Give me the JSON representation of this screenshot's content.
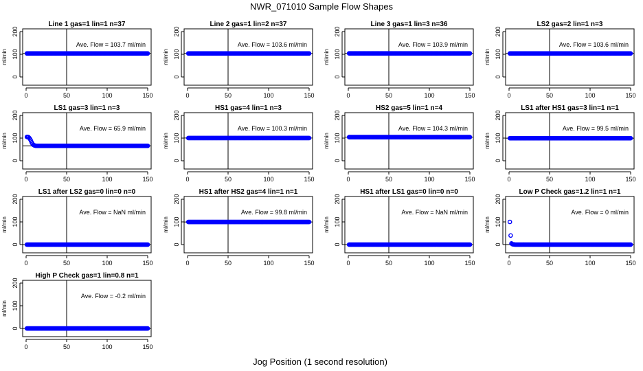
{
  "figure": {
    "title": "NWR_071010  Sample Flow Shapes",
    "xlabel": "Jog Position (1 second resolution)"
  },
  "colors": {
    "points": "#0000ff",
    "axes": "#000000",
    "background": "#ffffff"
  },
  "chart_data": [
    {
      "type": "scatter",
      "title": "Line 1 gas=1 lin=1 n=37",
      "ylabel": "ml/min",
      "annotation": "Ave. Flow =  103.7  ml/min",
      "xlim": [
        0,
        150
      ],
      "ylim": [
        0,
        200
      ],
      "xticks": [
        0,
        50,
        100,
        150
      ],
      "yticks": [
        0,
        100,
        200
      ],
      "vline_x": 50,
      "hline_y": 103.7,
      "series": [
        {
          "name": "flow",
          "shape": "constant",
          "value": 103.7,
          "x_range": [
            1,
            150
          ]
        }
      ]
    },
    {
      "type": "scatter",
      "title": "Line 2 gas=1 lin=2 n=37",
      "ylabel": "ml/min",
      "annotation": "Ave. Flow =  103.6  ml/min",
      "xlim": [
        0,
        150
      ],
      "ylim": [
        0,
        200
      ],
      "xticks": [
        0,
        50,
        100,
        150
      ],
      "yticks": [
        0,
        100,
        200
      ],
      "vline_x": 50,
      "hline_y": 103.6,
      "series": [
        {
          "name": "flow",
          "shape": "constant",
          "value": 103.6,
          "x_range": [
            1,
            150
          ]
        }
      ]
    },
    {
      "type": "scatter",
      "title": "Line 3 gas=1 lin=3 n=36",
      "ylabel": "ml/min",
      "annotation": "Ave. Flow =  103.9  ml/min",
      "xlim": [
        0,
        150
      ],
      "ylim": [
        0,
        200
      ],
      "xticks": [
        0,
        50,
        100,
        150
      ],
      "yticks": [
        0,
        100,
        200
      ],
      "vline_x": 50,
      "hline_y": 103.9,
      "series": [
        {
          "name": "flow",
          "shape": "constant",
          "value": 103.9,
          "x_range": [
            1,
            150
          ]
        }
      ]
    },
    {
      "type": "scatter",
      "title": "LS2 gas=2 lin=1 n=3",
      "ylabel": "ml/min",
      "annotation": "Ave. Flow =  103.6  ml/min",
      "xlim": [
        0,
        150
      ],
      "ylim": [
        0,
        200
      ],
      "xticks": [
        0,
        50,
        100,
        150
      ],
      "yticks": [
        0,
        100,
        200
      ],
      "vline_x": 50,
      "hline_y": 103.6,
      "series": [
        {
          "name": "flow",
          "shape": "constant",
          "value": 103.6,
          "x_range": [
            1,
            150
          ]
        }
      ]
    },
    {
      "type": "scatter",
      "title": "LS1 gas=3 lin=1 n=3",
      "ylabel": "ml/min",
      "annotation": "Ave. Flow =  65.9  ml/min",
      "xlim": [
        0,
        150
      ],
      "ylim": [
        0,
        200
      ],
      "xticks": [
        0,
        50,
        100,
        150
      ],
      "yticks": [
        0,
        100,
        200
      ],
      "vline_x": 50,
      "hline_y": 65.9,
      "series": [
        {
          "name": "flow",
          "shape": "spike_then_constant",
          "value": 65.9,
          "start_values": [
            105,
            105,
            104,
            100,
            95,
            88,
            80,
            74,
            70,
            68,
            67,
            66
          ],
          "x_range": [
            1,
            150
          ]
        }
      ]
    },
    {
      "type": "scatter",
      "title": "HS1 gas=4 lin=1 n=3",
      "ylabel": "ml/min",
      "annotation": "Ave. Flow =  100.3  ml/min",
      "xlim": [
        0,
        150
      ],
      "ylim": [
        0,
        200
      ],
      "xticks": [
        0,
        50,
        100,
        150
      ],
      "yticks": [
        0,
        100,
        200
      ],
      "vline_x": 50,
      "hline_y": 100.3,
      "series": [
        {
          "name": "flow",
          "shape": "constant",
          "value": 100.3,
          "x_range": [
            1,
            150
          ]
        }
      ]
    },
    {
      "type": "scatter",
      "title": "HS2 gas=5 lin=1 n=4",
      "ylabel": "ml/min",
      "annotation": "Ave. Flow =  104.3  ml/min",
      "xlim": [
        0,
        150
      ],
      "ylim": [
        0,
        200
      ],
      "xticks": [
        0,
        50,
        100,
        150
      ],
      "yticks": [
        0,
        100,
        200
      ],
      "vline_x": 50,
      "hline_y": 104.3,
      "series": [
        {
          "name": "flow",
          "shape": "constant",
          "value": 104.3,
          "x_range": [
            1,
            150
          ]
        }
      ]
    },
    {
      "type": "scatter",
      "title": "LS1 after HS1 gas=3 lin=1 n=1",
      "ylabel": "ml/min",
      "annotation": "Ave. Flow =  99.5  ml/min",
      "xlim": [
        0,
        150
      ],
      "ylim": [
        0,
        200
      ],
      "xticks": [
        0,
        50,
        100,
        150
      ],
      "yticks": [
        0,
        100,
        200
      ],
      "vline_x": 50,
      "hline_y": 99.5,
      "series": [
        {
          "name": "flow",
          "shape": "constant",
          "value": 99.5,
          "x_range": [
            1,
            150
          ]
        }
      ]
    },
    {
      "type": "scatter",
      "title": "LS1 after LS2 gas=0 lin=0 n=0",
      "ylabel": "ml/min",
      "annotation": "Ave. Flow =  NaN  ml/min",
      "xlim": [
        0,
        150
      ],
      "ylim": [
        0,
        200
      ],
      "xticks": [
        0,
        50,
        100,
        150
      ],
      "yticks": [
        0,
        100,
        200
      ],
      "vline_x": 50,
      "hline_y": 0,
      "series": [
        {
          "name": "flow",
          "shape": "constant",
          "value": 0,
          "x_range": [
            1,
            150
          ]
        }
      ]
    },
    {
      "type": "scatter",
      "title": "HS1 after HS2 gas=4 lin=1 n=1",
      "ylabel": "ml/min",
      "annotation": "Ave. Flow =  99.8  ml/min",
      "xlim": [
        0,
        150
      ],
      "ylim": [
        0,
        200
      ],
      "xticks": [
        0,
        50,
        100,
        150
      ],
      "yticks": [
        0,
        100,
        200
      ],
      "vline_x": 50,
      "hline_y": 99.8,
      "series": [
        {
          "name": "flow",
          "shape": "constant",
          "value": 99.8,
          "x_range": [
            1,
            150
          ]
        }
      ]
    },
    {
      "type": "scatter",
      "title": "HS1 after LS1 gas=0 lin=0 n=0",
      "ylabel": "ml/min",
      "annotation": "Ave. Flow =  NaN  ml/min",
      "xlim": [
        0,
        150
      ],
      "ylim": [
        0,
        200
      ],
      "xticks": [
        0,
        50,
        100,
        150
      ],
      "yticks": [
        0,
        100,
        200
      ],
      "vline_x": 50,
      "hline_y": 0,
      "series": [
        {
          "name": "flow",
          "shape": "constant",
          "value": 0,
          "x_range": [
            1,
            150
          ]
        }
      ]
    },
    {
      "type": "scatter",
      "title": "Low P Check gas=1.2 lin=1 n=1",
      "ylabel": "ml/min",
      "annotation": "Ave. Flow =  0  ml/min",
      "xlim": [
        0,
        150
      ],
      "ylim": [
        0,
        200
      ],
      "xticks": [
        0,
        50,
        100,
        150
      ],
      "yticks": [
        0,
        100,
        200
      ],
      "vline_x": 50,
      "hline_y": 0,
      "series": [
        {
          "name": "flow",
          "shape": "spike_then_constant",
          "value": 0,
          "start_values": [
            100,
            40,
            5,
            2,
            1,
            1
          ],
          "x_range": [
            1,
            150
          ]
        }
      ]
    },
    {
      "type": "scatter",
      "title": "High P Check gas=1 lin=0.8 n=1",
      "ylabel": "ml/min",
      "annotation": "Ave. Flow =  -0.2  ml/min",
      "xlim": [
        0,
        150
      ],
      "ylim": [
        0,
        200
      ],
      "xticks": [
        0,
        50,
        100,
        150
      ],
      "yticks": [
        0,
        100,
        200
      ],
      "vline_x": 50,
      "hline_y": -0.2,
      "series": [
        {
          "name": "flow",
          "shape": "constant",
          "value": -0.2,
          "x_range": [
            1,
            150
          ]
        }
      ]
    }
  ]
}
